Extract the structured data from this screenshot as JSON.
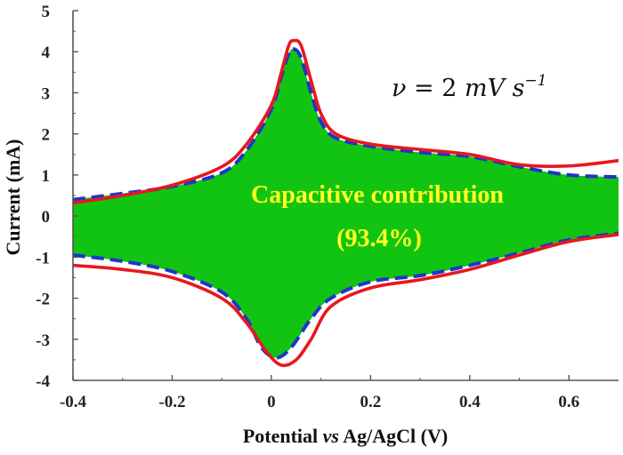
{
  "chart_data": {
    "type": "area",
    "xlabel": {
      "prefix": "Potential ",
      "italic": "vs",
      "suffix": "  Ag/AgCl (V)"
    },
    "ylabel": "Current (mA)",
    "xlim": [
      -0.4,
      0.7
    ],
    "ylim": [
      -4,
      5
    ],
    "xticks": [
      -0.4,
      -0.2,
      0,
      0.2,
      0.4,
      0.6
    ],
    "xtick_labels": [
      "-0.4",
      "-0.2",
      "0",
      "0.2",
      "0.4",
      "0.6"
    ],
    "yticks": [
      -4,
      -3,
      -2,
      -1,
      0,
      1,
      2,
      3,
      4,
      5
    ],
    "ytick_labels": [
      "-4",
      "-3",
      "-2",
      "-1",
      "0",
      "1",
      "2",
      "3",
      "4",
      "5"
    ],
    "grid": false,
    "annotation_rate": {
      "nu": "ν",
      "eq": " = 2 ",
      "unit": "mV s",
      "exp": "−1"
    },
    "annotation_lines": [
      "Capacitive contribution",
      "(93.4%)"
    ],
    "colors": {
      "total": "#e8171e",
      "capacitive": "#1f35c9",
      "fill": "#12c412",
      "annot": "#ffff22"
    },
    "series": [
      {
        "role": "total",
        "upper": [
          [
            -0.4,
            0.32
          ],
          [
            -0.3,
            0.5
          ],
          [
            -0.2,
            0.75
          ],
          [
            -0.1,
            1.2
          ],
          [
            -0.05,
            1.75
          ],
          [
            0,
            2.7
          ],
          [
            0.02,
            3.5
          ],
          [
            0.035,
            4.15
          ],
          [
            0.045,
            4.27
          ],
          [
            0.06,
            4.15
          ],
          [
            0.08,
            3.3
          ],
          [
            0.1,
            2.5
          ],
          [
            0.13,
            2.0
          ],
          [
            0.2,
            1.75
          ],
          [
            0.3,
            1.62
          ],
          [
            0.4,
            1.5
          ],
          [
            0.5,
            1.25
          ],
          [
            0.6,
            1.22
          ],
          [
            0.7,
            1.35
          ]
        ],
        "lower": [
          [
            -0.4,
            -1.2
          ],
          [
            -0.3,
            -1.3
          ],
          [
            -0.2,
            -1.5
          ],
          [
            -0.1,
            -2.0
          ],
          [
            -0.05,
            -2.6
          ],
          [
            -0.01,
            -3.3
          ],
          [
            0.02,
            -3.63
          ],
          [
            0.05,
            -3.5
          ],
          [
            0.08,
            -3.0
          ],
          [
            0.12,
            -2.2
          ],
          [
            0.2,
            -1.75
          ],
          [
            0.3,
            -1.55
          ],
          [
            0.4,
            -1.3
          ],
          [
            0.5,
            -0.95
          ],
          [
            0.6,
            -0.62
          ],
          [
            0.7,
            -0.45
          ]
        ]
      },
      {
        "role": "capacitive",
        "upper": [
          [
            -0.4,
            0.4
          ],
          [
            -0.3,
            0.55
          ],
          [
            -0.2,
            0.72
          ],
          [
            -0.1,
            1.05
          ],
          [
            -0.05,
            1.6
          ],
          [
            0,
            2.6
          ],
          [
            0.02,
            3.4
          ],
          [
            0.035,
            3.95
          ],
          [
            0.045,
            4.07
          ],
          [
            0.06,
            3.85
          ],
          [
            0.08,
            3.0
          ],
          [
            0.1,
            2.3
          ],
          [
            0.13,
            1.9
          ],
          [
            0.2,
            1.7
          ],
          [
            0.3,
            1.55
          ],
          [
            0.4,
            1.45
          ],
          [
            0.5,
            1.2
          ],
          [
            0.6,
            1.0
          ],
          [
            0.7,
            0.95
          ]
        ],
        "lower": [
          [
            -0.4,
            -0.95
          ],
          [
            -0.3,
            -1.1
          ],
          [
            -0.2,
            -1.35
          ],
          [
            -0.1,
            -1.85
          ],
          [
            -0.05,
            -2.5
          ],
          [
            -0.02,
            -3.2
          ],
          [
            0.01,
            -3.45
          ],
          [
            0.04,
            -3.2
          ],
          [
            0.08,
            -2.5
          ],
          [
            0.12,
            -2.0
          ],
          [
            0.2,
            -1.6
          ],
          [
            0.3,
            -1.45
          ],
          [
            0.4,
            -1.2
          ],
          [
            0.5,
            -0.9
          ],
          [
            0.6,
            -0.58
          ],
          [
            0.7,
            -0.42
          ]
        ]
      }
    ]
  }
}
